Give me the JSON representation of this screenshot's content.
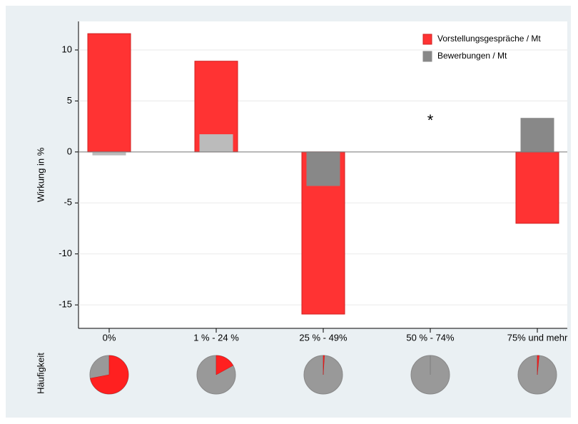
{
  "chart_data": [
    {
      "type": "bar",
      "ylabel": "Wirkung in %",
      "categories": [
        "0%",
        "1 % - 24 %",
        "25 % - 49%",
        "50 % - 74%",
        "75% und mehr"
      ],
      "series": [
        {
          "name": "Vorstellungsgespräche / Mt",
          "color": "#ff3333",
          "values": [
            11.6,
            8.9,
            -15.9,
            null,
            -7.0
          ]
        },
        {
          "name": "Bewerbungen / Mt",
          "color": "#888888",
          "colors": [
            "#bbbbbb",
            "#bbbbbb",
            "#888888",
            "#888888",
            "#888888"
          ],
          "values": [
            -0.3,
            1.7,
            -3.3,
            null,
            3.3
          ]
        }
      ],
      "annotation": "*",
      "ylim": [
        -17.3,
        12.8
      ],
      "yticks": [
        -15,
        -10,
        -5,
        0,
        5,
        10
      ],
      "grid": true,
      "legend": "top-right"
    },
    {
      "type": "pie",
      "label": "Häufigkeit",
      "values": [
        72,
        17,
        1,
        0,
        1.5
      ],
      "colors": [
        "#ff2020",
        "#999999"
      ]
    }
  ]
}
